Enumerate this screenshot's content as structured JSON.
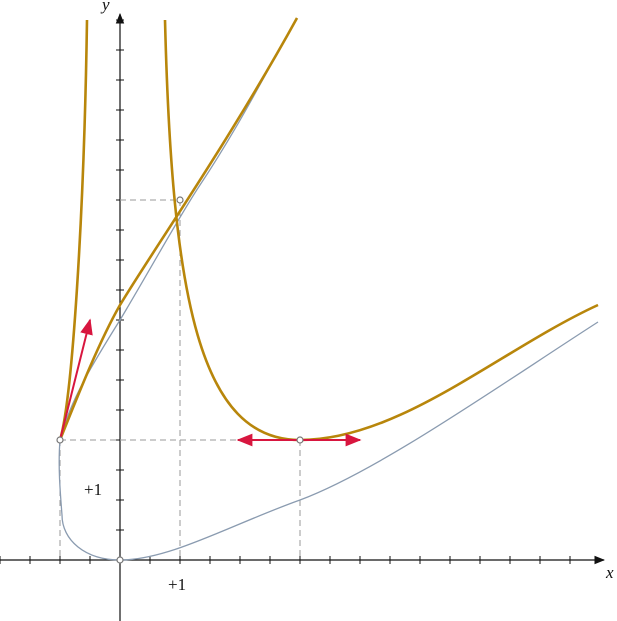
{
  "axes": {
    "x_label": "x",
    "y_label": "y"
  },
  "tick_labels": {
    "x_unit": "+1",
    "y_unit": "+1"
  }
}
